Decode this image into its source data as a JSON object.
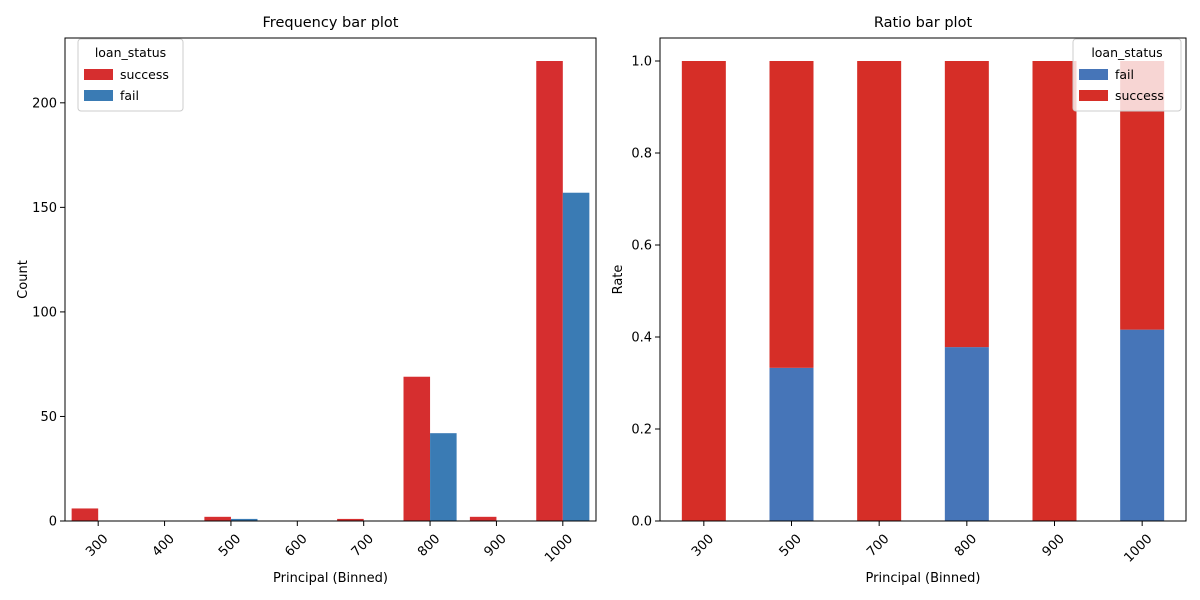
{
  "chart_data": [
    {
      "type": "bar",
      "title": "Frequency bar plot",
      "xlabel": "Principal (Binned)",
      "ylabel": "Count",
      "categories": [
        "300",
        "400",
        "500",
        "600",
        "700",
        "800",
        "900",
        "1000"
      ],
      "series": [
        {
          "name": "success",
          "color": "#d62e2f",
          "values": [
            6,
            0,
            2,
            0,
            1,
            69,
            2,
            220
          ]
        },
        {
          "name": "fail",
          "color": "#3a7bb4",
          "values": [
            0,
            0,
            1,
            0,
            0,
            42,
            0,
            157
          ]
        }
      ],
      "ylim": [
        0,
        231
      ],
      "yticks": [
        0,
        50,
        100,
        150,
        200
      ],
      "legend": {
        "title": "loan_status",
        "position": "upper-left"
      },
      "grid": false
    },
    {
      "type": "bar",
      "stacked": true,
      "title": "Ratio bar plot",
      "xlabel": "Principal (Binned)",
      "ylabel": "Rate",
      "categories": [
        "300",
        "500",
        "700",
        "800",
        "900",
        "1000"
      ],
      "series": [
        {
          "name": "fail",
          "color": "#4675b8",
          "values": [
            0.0,
            0.333,
            0.0,
            0.378,
            0.0,
            0.416
          ]
        },
        {
          "name": "success",
          "color": "#d62e27",
          "values": [
            1.0,
            0.667,
            1.0,
            0.622,
            1.0,
            0.584
          ]
        }
      ],
      "ylim": [
        0,
        1.05
      ],
      "yticks": [
        0.0,
        0.2,
        0.4,
        0.6,
        0.8,
        1.0
      ],
      "legend": {
        "title": "loan_status",
        "position": "upper-right"
      },
      "grid": false
    }
  ]
}
